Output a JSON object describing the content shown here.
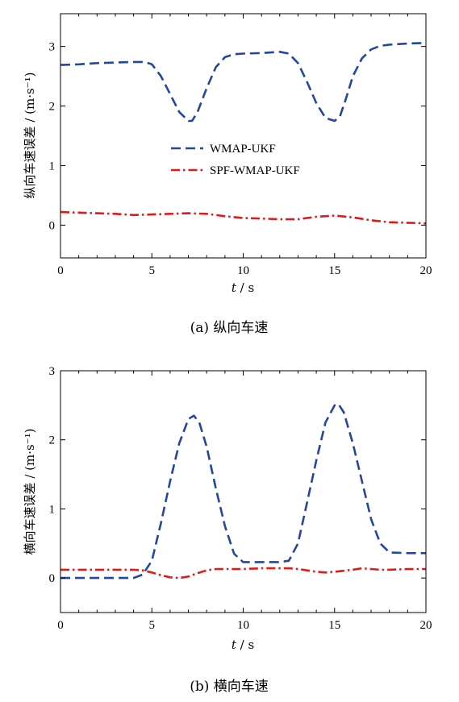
{
  "series_styles": [
    {
      "color": "#2346a0",
      "dash": "dashed"
    },
    {
      "color": "#e0191b",
      "dash": "dashdot"
    }
  ],
  "chart_data": [
    {
      "type": "line",
      "caption": "(a)  纵向车速",
      "xlabel_var": "t",
      "xlabel_unit": " / s",
      "ylabel": "纵向车速误差 / (m·s⁻¹)",
      "xlim": [
        0,
        20
      ],
      "ylim": [
        -0.55,
        3.55
      ],
      "xticks": [
        0,
        5,
        10,
        15,
        20
      ],
      "yticks": [
        0,
        1,
        2,
        3
      ],
      "grid": false,
      "legend_position": "center",
      "series": [
        {
          "name": "WMAP-UKF",
          "x": [
            0,
            1,
            2,
            3,
            4,
            4.6,
            5,
            5.5,
            6,
            6.5,
            7,
            7.2,
            7.5,
            8,
            8.5,
            9,
            9.5,
            10,
            11,
            12,
            12.5,
            13,
            13.5,
            14,
            14.5,
            15,
            15.3,
            15.6,
            16,
            16.5,
            17,
            17.5,
            18,
            19,
            20
          ],
          "y": [
            2.69,
            2.7,
            2.72,
            2.73,
            2.74,
            2.74,
            2.7,
            2.5,
            2.2,
            1.9,
            1.75,
            1.75,
            1.9,
            2.3,
            2.65,
            2.82,
            2.87,
            2.88,
            2.89,
            2.91,
            2.88,
            2.72,
            2.4,
            2.05,
            1.8,
            1.75,
            1.83,
            2.1,
            2.5,
            2.8,
            2.95,
            3.01,
            3.03,
            3.05,
            3.06
          ]
        },
        {
          "name": "SPF-WMAP-UKF",
          "x": [
            0,
            1,
            2,
            3,
            4,
            5,
            6,
            7,
            8,
            9,
            10,
            11,
            12,
            13,
            14,
            15,
            16,
            17,
            18,
            19,
            20
          ],
          "y": [
            0.22,
            0.21,
            0.2,
            0.19,
            0.17,
            0.18,
            0.19,
            0.2,
            0.19,
            0.15,
            0.12,
            0.11,
            0.1,
            0.1,
            0.14,
            0.16,
            0.13,
            0.08,
            0.05,
            0.04,
            0.03
          ]
        }
      ]
    },
    {
      "type": "line",
      "caption": "(b)  横向车速",
      "xlabel_var": "t",
      "xlabel_unit": " / s",
      "ylabel": "横向车速误差 / (m·s⁻¹)",
      "xlim": [
        0,
        20
      ],
      "ylim": [
        -0.5,
        3.0
      ],
      "xticks": [
        0,
        5,
        10,
        15,
        20
      ],
      "yticks": [
        0,
        1,
        2,
        3
      ],
      "grid": false,
      "legend_position": "none",
      "series": [
        {
          "name": "WMAP-UKF",
          "x": [
            0,
            1,
            2,
            3,
            4,
            4.5,
            5,
            5.5,
            6,
            6.5,
            7,
            7.3,
            7.6,
            8,
            8.5,
            9,
            9.5,
            10,
            11,
            12,
            12.5,
            13,
            13.5,
            14,
            14.5,
            15,
            15.2,
            15.5,
            16,
            16.5,
            17,
            17.5,
            18,
            19,
            20
          ],
          "y": [
            0.0,
            0.0,
            0.0,
            0.0,
            0.0,
            0.05,
            0.25,
            0.8,
            1.4,
            1.95,
            2.3,
            2.35,
            2.25,
            1.9,
            1.3,
            0.75,
            0.35,
            0.23,
            0.23,
            0.23,
            0.25,
            0.5,
            1.1,
            1.7,
            2.25,
            2.5,
            2.52,
            2.4,
            1.95,
            1.4,
            0.85,
            0.5,
            0.37,
            0.36,
            0.36
          ]
        },
        {
          "name": "SPF-WMAP-UKF",
          "x": [
            0,
            1,
            2,
            3,
            4,
            4.5,
            5,
            5.5,
            6,
            6.5,
            7,
            7.5,
            8,
            8.5,
            9,
            10,
            11,
            12,
            12.5,
            13,
            14,
            14.5,
            15,
            16,
            16.5,
            17,
            17.5,
            18,
            19,
            20
          ],
          "y": [
            0.12,
            0.12,
            0.12,
            0.12,
            0.12,
            0.11,
            0.08,
            0.04,
            0.01,
            0.0,
            0.02,
            0.07,
            0.11,
            0.13,
            0.13,
            0.13,
            0.14,
            0.14,
            0.14,
            0.13,
            0.09,
            0.08,
            0.09,
            0.12,
            0.14,
            0.13,
            0.12,
            0.12,
            0.13,
            0.13
          ]
        }
      ]
    }
  ]
}
